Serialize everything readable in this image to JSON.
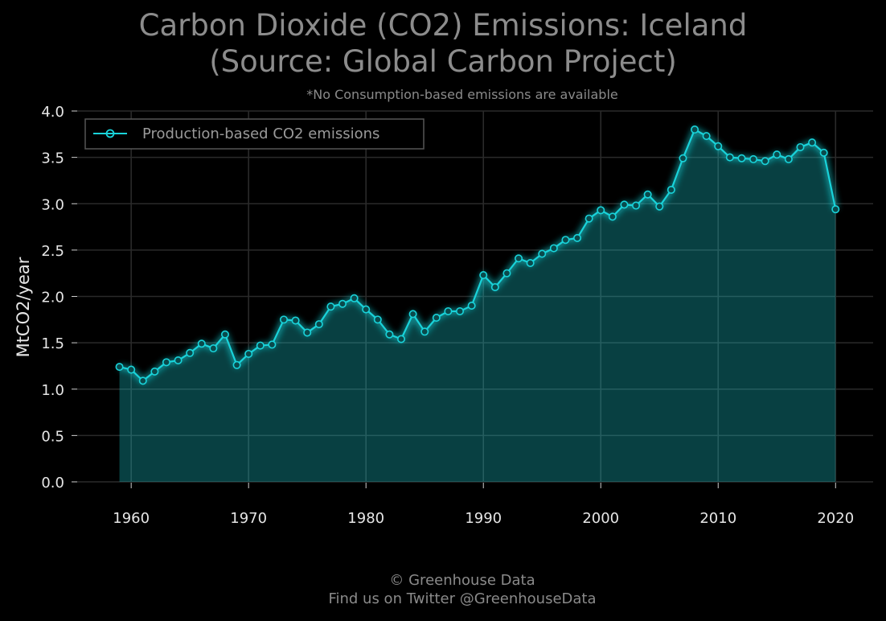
{
  "header": {
    "title_line1": "Carbon Dioxide (CO2) Emissions: Iceland",
    "title_line2": "(Source: Global Carbon Project)",
    "subtitle": "*No Consumption-based emissions are available"
  },
  "footer": {
    "line1": "© Greenhouse Data",
    "line2": "Find us on Twitter @GreenhouseData"
  },
  "colors": {
    "background": "#000000",
    "line": "#19d3da",
    "area_fill": "#0a5c5c",
    "grid": "#2a2a2a",
    "text": "#e6e6e6",
    "muted_text": "#8a8a8a"
  },
  "chart_data": {
    "type": "area",
    "title": "Carbon Dioxide (CO2) Emissions: Iceland (Source: Global Carbon Project)",
    "subtitle": "*No Consumption-based emissions are available",
    "xlabel": "",
    "ylabel": "MtCO2/year",
    "xlim": [
      1955.4,
      2023.2
    ],
    "ylim": [
      0,
      4.0
    ],
    "xticks": [
      1960,
      1970,
      1980,
      1990,
      2000,
      2010,
      2020
    ],
    "yticks": [
      0.0,
      0.5,
      1.0,
      1.5,
      2.0,
      2.5,
      3.0,
      3.5,
      4.0
    ],
    "ytick_labels": [
      "0.0",
      "0.5",
      "1.0",
      "1.5",
      "2.0",
      "2.5",
      "3.0",
      "3.5",
      "4.0"
    ],
    "grid": true,
    "legend_position": "top-left",
    "series": [
      {
        "name": "Production-based CO2 emissions",
        "x": [
          1959,
          1960,
          1961,
          1962,
          1963,
          1964,
          1965,
          1966,
          1967,
          1968,
          1969,
          1970,
          1971,
          1972,
          1973,
          1974,
          1975,
          1976,
          1977,
          1978,
          1979,
          1980,
          1981,
          1982,
          1983,
          1984,
          1985,
          1986,
          1987,
          1988,
          1989,
          1990,
          1991,
          1992,
          1993,
          1994,
          1995,
          1996,
          1997,
          1998,
          1999,
          2000,
          2001,
          2002,
          2003,
          2004,
          2005,
          2006,
          2007,
          2008,
          2009,
          2010,
          2011,
          2012,
          2013,
          2014,
          2015,
          2016,
          2017,
          2018,
          2019,
          2020
        ],
        "values": [
          1.24,
          1.21,
          1.09,
          1.19,
          1.29,
          1.31,
          1.39,
          1.49,
          1.44,
          1.59,
          1.26,
          1.38,
          1.47,
          1.48,
          1.75,
          1.74,
          1.61,
          1.7,
          1.89,
          1.92,
          1.98,
          1.86,
          1.75,
          1.59,
          1.54,
          1.81,
          1.62,
          1.77,
          1.84,
          1.84,
          1.9,
          2.23,
          2.1,
          2.25,
          2.41,
          2.36,
          2.46,
          2.52,
          2.61,
          2.63,
          2.84,
          2.93,
          2.86,
          2.99,
          2.98,
          3.1,
          2.97,
          3.15,
          3.49,
          3.8,
          3.73,
          3.62,
          3.5,
          3.49,
          3.48,
          3.46,
          3.53,
          3.48,
          3.61,
          3.66,
          3.55,
          2.94
        ]
      }
    ]
  }
}
